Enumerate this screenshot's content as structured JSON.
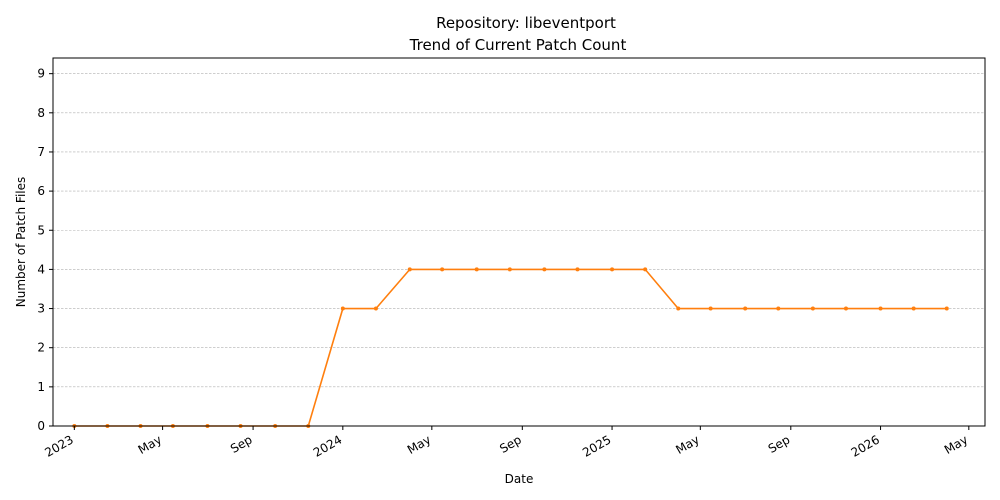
{
  "chart_data": {
    "type": "line",
    "title": "Repository: libeventport",
    "subtitle": "Trend of Current Patch Count",
    "xlabel": "Date",
    "ylabel": "Number of Patch Files",
    "ylim": [
      0,
      9.4
    ],
    "xlim": [
      "2022-12-03",
      "2026-05-23"
    ],
    "grid": "y-dashed",
    "line_color": "#ff7f0e",
    "y_ticks": [
      0,
      1,
      2,
      3,
      4,
      5,
      6,
      7,
      8,
      9
    ],
    "x_ticks": [
      {
        "date": "2023-01-01",
        "label": "2023"
      },
      {
        "date": "2023-05-01",
        "label": "May"
      },
      {
        "date": "2023-09-01",
        "label": "Sep"
      },
      {
        "date": "2024-01-01",
        "label": "2024"
      },
      {
        "date": "2024-05-01",
        "label": "May"
      },
      {
        "date": "2024-09-01",
        "label": "Sep"
      },
      {
        "date": "2025-01-01",
        "label": "2025"
      },
      {
        "date": "2025-05-01",
        "label": "May"
      },
      {
        "date": "2025-09-01",
        "label": "Sep"
      },
      {
        "date": "2026-01-01",
        "label": "2026"
      },
      {
        "date": "2026-05-01",
        "label": "May"
      }
    ],
    "series": [
      {
        "x": [
          "2023-01-01",
          "2023-02-15",
          "2023-04-01",
          "2023-05-15",
          "2023-07-01",
          "2023-08-15",
          "2023-10-01",
          "2023-11-15",
          "2024-01-01",
          "2024-02-15",
          "2024-04-01",
          "2024-05-15",
          "2024-07-01",
          "2024-08-15",
          "2024-10-01",
          "2024-11-15",
          "2025-01-01",
          "2025-02-15",
          "2025-04-01",
          "2025-05-15",
          "2025-07-01",
          "2025-08-15",
          "2025-10-01",
          "2025-11-15",
          "2026-01-01",
          "2026-02-15",
          "2026-04-01"
        ],
        "y": [
          0,
          0,
          0,
          0,
          0,
          0,
          0,
          0,
          3,
          3,
          4,
          4,
          4,
          4,
          4,
          4,
          4,
          4,
          3,
          3,
          3,
          3,
          3,
          3,
          3,
          3,
          3
        ]
      }
    ]
  }
}
